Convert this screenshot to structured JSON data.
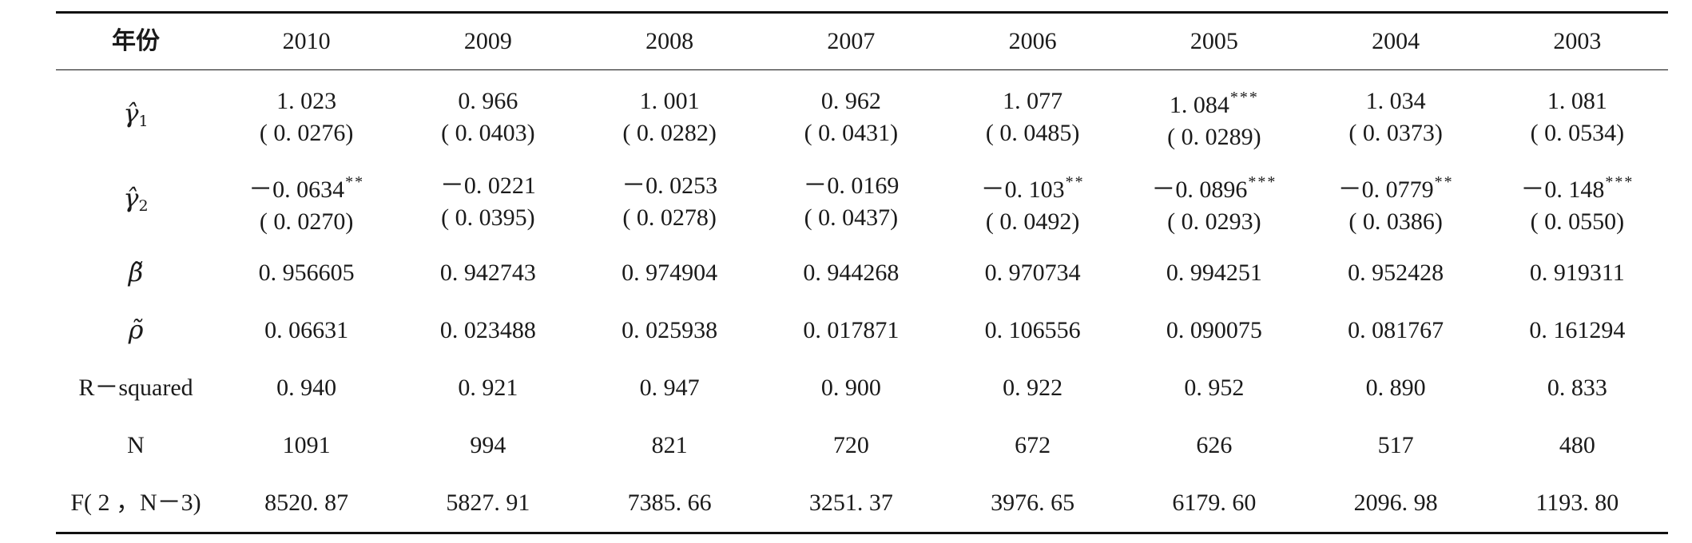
{
  "table": {
    "stub_header": "年份",
    "years": [
      "2010",
      "2009",
      "2008",
      "2007",
      "2006",
      "2005",
      "2004",
      "2003"
    ],
    "coef_rows": [
      {
        "label": "γ̂",
        "subscript": "1",
        "values": [
          "1. 023",
          "0. 966",
          "1. 001",
          "0. 962",
          "1. 077",
          "1. 084",
          "1. 034",
          "1. 081"
        ],
        "stars": [
          "",
          "",
          "",
          "",
          "",
          "***",
          "",
          ""
        ],
        "se": [
          "( 0. 0276)",
          "( 0. 0403)",
          "( 0. 0282)",
          "( 0. 0431)",
          "( 0. 0485)",
          "( 0. 0289)",
          "( 0. 0373)",
          "( 0. 0534)"
        ]
      },
      {
        "label": "γ̂",
        "subscript": "2",
        "values": [
          "－0. 0634",
          "－0. 0221",
          "－0. 0253",
          "－0. 0169",
          "－0. 103",
          "－0. 0896",
          "－0. 0779",
          "－0. 148"
        ],
        "stars": [
          "**",
          "",
          "",
          "",
          "**",
          "***",
          "**",
          "***"
        ],
        "se": [
          "( 0. 0270)",
          "( 0. 0395)",
          "( 0. 0278)",
          "( 0. 0437)",
          "( 0. 0492)",
          "( 0. 0293)",
          "( 0. 0386)",
          "( 0. 0550)"
        ]
      }
    ],
    "single_rows": [
      {
        "label": "β̃",
        "values": [
          "0. 956605",
          "0. 942743",
          "0. 974904",
          "0. 944268",
          "0. 970734",
          "0. 994251",
          "0. 952428",
          "0. 919311"
        ]
      },
      {
        "label": "ρ̃",
        "values": [
          "0. 06631",
          "0. 023488",
          "0. 025938",
          "0. 017871",
          "0. 106556",
          "0. 090075",
          "0. 081767",
          "0. 161294"
        ]
      },
      {
        "label": "R－squared",
        "values": [
          "0. 940",
          "0. 921",
          "0. 947",
          "0. 900",
          "0. 922",
          "0. 952",
          "0. 890",
          "0. 833"
        ]
      },
      {
        "label": "N",
        "values": [
          "1091",
          "994",
          "821",
          "720",
          "672",
          "626",
          "517",
          "480"
        ]
      },
      {
        "label": "F( 2 ，N－3)",
        "values": [
          "8520. 87",
          "5827. 91",
          "7385. 66",
          "3251. 37",
          "3976. 65",
          "6179. 60",
          "2096. 98",
          "1193. 80"
        ]
      }
    ]
  }
}
